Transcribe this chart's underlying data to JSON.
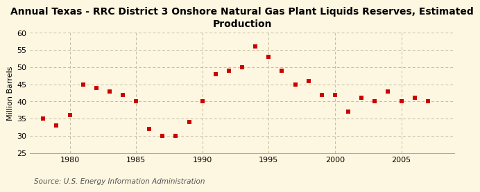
{
  "title": "Annual Texas - RRC District 3 Onshore Natural Gas Plant Liquids Reserves, Estimated\nProduction",
  "ylabel": "Million Barrels",
  "source": "Source: U.S. Energy Information Administration",
  "years": [
    1978,
    1979,
    1980,
    1981,
    1982,
    1983,
    1984,
    1985,
    1986,
    1987,
    1988,
    1989,
    1990,
    1991,
    1992,
    1993,
    1994,
    1995,
    1996,
    1997,
    1998,
    1999,
    2000,
    2001,
    2002,
    2003,
    2004,
    2005,
    2006,
    2007,
    2008
  ],
  "values": [
    35,
    33,
    36,
    45,
    44,
    43,
    42,
    40,
    32,
    30,
    30,
    34,
    40,
    48,
    49,
    50,
    56,
    53,
    49,
    45,
    46,
    42,
    42,
    37,
    41,
    40,
    43,
    40,
    41,
    40,
    null
  ],
  "xlim": [
    1977,
    2009
  ],
  "ylim": [
    25,
    60
  ],
  "yticks": [
    25,
    30,
    35,
    40,
    45,
    50,
    55,
    60
  ],
  "xticks": [
    1980,
    1985,
    1990,
    1995,
    2000,
    2005
  ],
  "marker_color": "#cc0000",
  "marker_size": 18,
  "background_color": "#fdf6e0",
  "grid_color": "#c0bea0",
  "title_fontsize": 10,
  "axis_fontsize": 8,
  "source_fontsize": 7.5
}
